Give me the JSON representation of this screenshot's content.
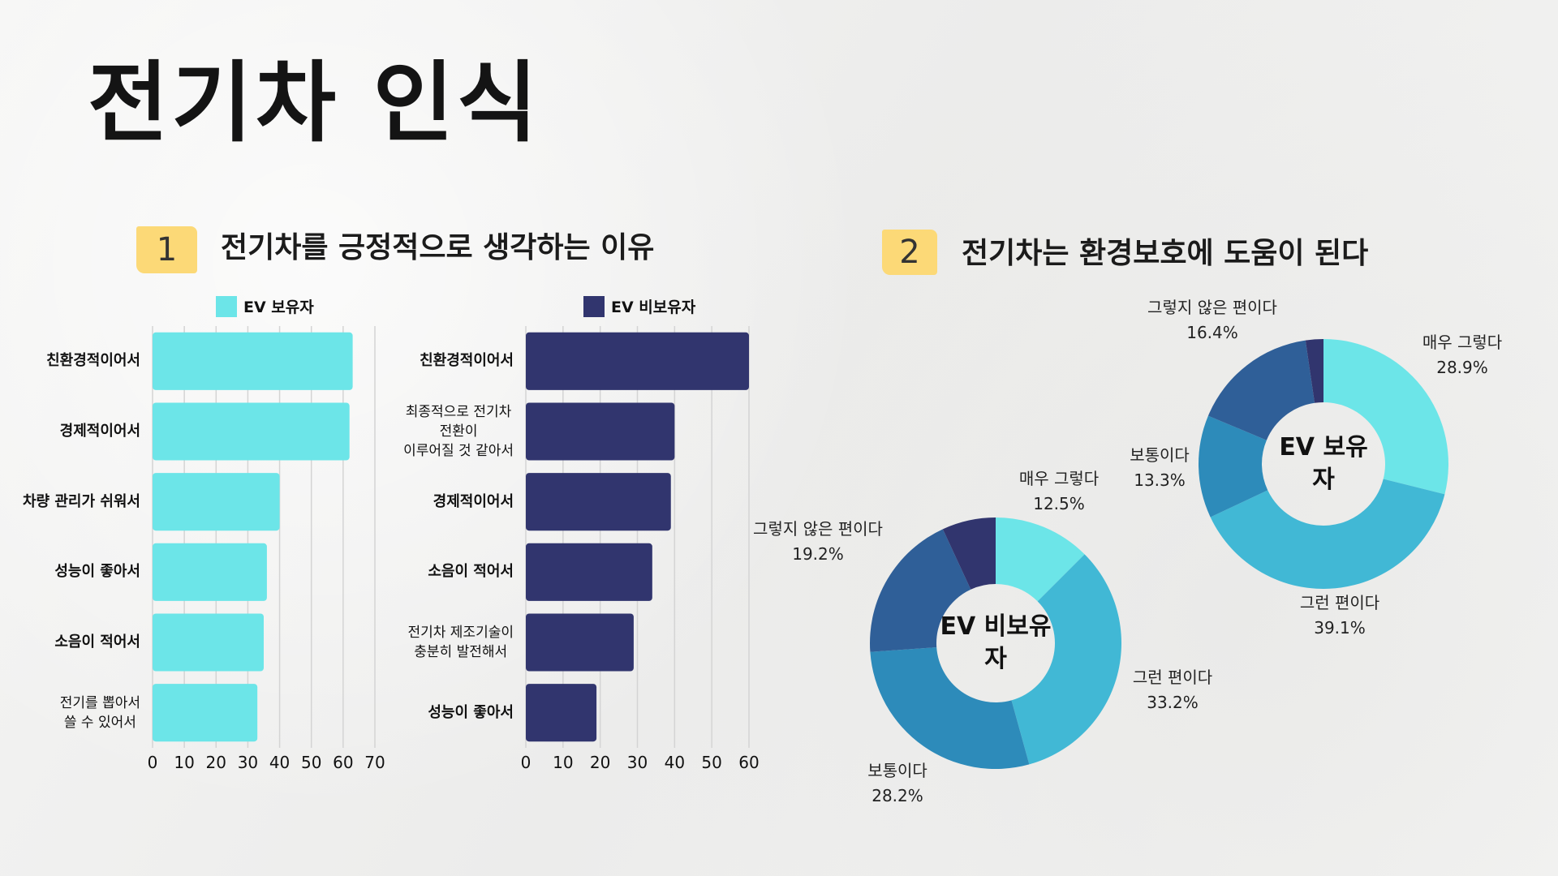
{
  "title": "전기차 인식",
  "section1": {
    "badge": "1",
    "heading": "전기차를 긍정적으로 생각하는 이유"
  },
  "section2": {
    "badge": "2",
    "heading": "전기차는 환경보호에 도움이 된다"
  },
  "chart_data": [
    {
      "type": "bar",
      "orientation": "horizontal",
      "legend": "EV 보유자",
      "color": "#6ce5e8",
      "categories": [
        "친환경적이어서",
        "경제적이어서",
        "차량 관리가 쉬워서",
        "성능이 좋아서",
        "소음이 적어서",
        "전기를 뽑아서\n쓸 수 있어서"
      ],
      "values": [
        63,
        62,
        40,
        36,
        35,
        33
      ],
      "xlim": [
        0,
        70
      ],
      "xticks": [
        "0",
        "10",
        "20",
        "30",
        "40",
        "50",
        "60",
        "70"
      ],
      "grid": true
    },
    {
      "type": "bar",
      "orientation": "horizontal",
      "legend": "EV 비보유자",
      "color": "#31356e",
      "categories": [
        "친환경적이어서",
        "최종적으로 전기차\n전환이\n이루어질 것 같아서",
        "경제적이어서",
        "소음이 적어서",
        "전기차 제조기술이\n충분히 발전해서",
        "성능이 좋아서"
      ],
      "values": [
        60,
        40,
        39,
        34,
        29,
        19
      ],
      "xlim": [
        0,
        60
      ],
      "xticks": [
        "0",
        "10",
        "20",
        "30",
        "40",
        "50",
        "60"
      ],
      "grid": true
    },
    {
      "type": "pie",
      "donut": true,
      "center_label": "EV 비보유\n자",
      "slices": [
        {
          "label": "매우 그렇다",
          "value": 12.5,
          "value_label": "12.5%",
          "color": "#6ce5e8"
        },
        {
          "label": "그런 편이다",
          "value": 33.2,
          "value_label": "33.2%",
          "color": "#41b8d5"
        },
        {
          "label": "보통이다",
          "value": 28.2,
          "value_label": "28.2%",
          "color": "#2d8bba"
        },
        {
          "label": "그렇지 않은 편이다",
          "value": 19.2,
          "value_label": "19.2%",
          "color": "#2f5f98"
        },
        {
          "value": 6.9,
          "color": "#31356e"
        }
      ]
    },
    {
      "type": "pie",
      "donut": true,
      "center_label": "EV 보유\n자",
      "slices": [
        {
          "label": "매우 그렇다",
          "value": 28.9,
          "value_label": "28.9%",
          "color": "#6ce5e8"
        },
        {
          "label": "그런 편이다",
          "value": 39.1,
          "value_label": "39.1%",
          "color": "#41b8d5"
        },
        {
          "label": "보통이다",
          "value": 13.3,
          "value_label": "13.3%",
          "color": "#2d8bba"
        },
        {
          "label": "그렇지 않은 편이다",
          "value": 16.4,
          "value_label": "16.4%",
          "color": "#2f5f98"
        },
        {
          "value": 2.3,
          "color": "#31356e"
        }
      ]
    }
  ]
}
